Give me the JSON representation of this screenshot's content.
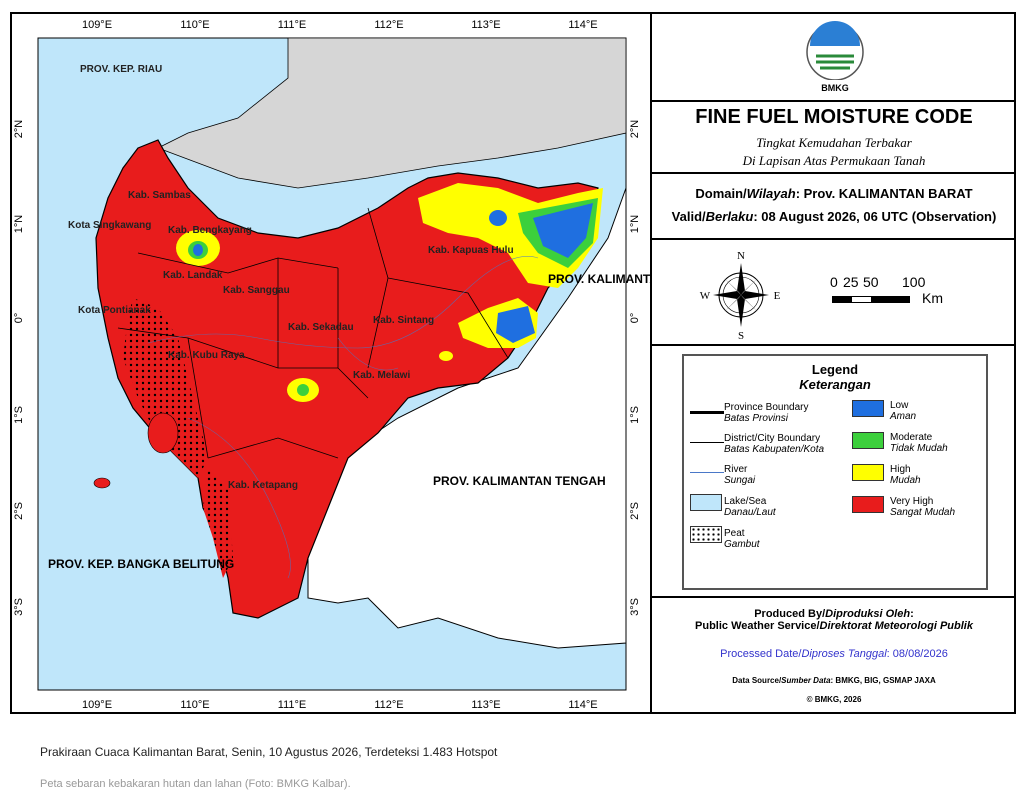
{
  "map": {
    "lon_labels": [
      "109°E",
      "110°E",
      "111°E",
      "112°E",
      "113°E",
      "114°E"
    ],
    "lat_labels": [
      "2°N",
      "1°N",
      "0°",
      "1°S",
      "2°S",
      "3°S"
    ],
    "places": [
      {
        "id": "prov-kep-riau",
        "text": "PROV. KEP. RIAU"
      },
      {
        "id": "kota-singkawang",
        "text": "Kota Singkawang"
      },
      {
        "id": "kab-sambas",
        "text": "Kab. Sambas"
      },
      {
        "id": "kab-bengkayang",
        "text": "Kab. Bengkayang"
      },
      {
        "id": "kab-landak",
        "text": "Kab. Landak"
      },
      {
        "id": "kab-sanggau",
        "text": "Kab. Sanggau"
      },
      {
        "id": "kab-sekadau",
        "text": "Kab. Sekadau"
      },
      {
        "id": "kab-sintang",
        "text": "Kab. Sintang"
      },
      {
        "id": "kab-melawi",
        "text": "Kab. Melawi"
      },
      {
        "id": "kab-kubu-raya",
        "text": "Kab. Kubu Raya"
      },
      {
        "id": "kab-ketapang",
        "text": "Kab. Ketapang"
      },
      {
        "id": "kota-pontianak",
        "text": "Kota Pontianak"
      },
      {
        "id": "kab-kapuas-hulu",
        "text": "Kab. Kapuas Hulu"
      },
      {
        "id": "prov-kalimantan-timur",
        "text": "PROV. KALIMANTAN TIMUR"
      },
      {
        "id": "prov-kalimantan-tengah",
        "text": "PROV. KALIMANTAN TENGAH"
      },
      {
        "id": "prov-bangka-belitung",
        "text": "PROV. KEP. BANGKA BELITUNG"
      }
    ]
  },
  "panel": {
    "logo_text": "BMKG",
    "title": "FINE FUEL MOISTURE CODE",
    "subtitle_1": "Tingkat Kemudahan Terbakar",
    "subtitle_2": "Di Lapisan Atas Permukaan Tanah",
    "domain_label": "Domain/",
    "domain_label_it": "Wilayah",
    "domain_value": ": Prov. KALIMANTAN BARAT",
    "valid_label": "Valid/",
    "valid_label_it": "Berlaku",
    "valid_value": ": 08 August 2026, 06 UTC (Observation)",
    "compass": {
      "n": "N",
      "s": "S",
      "e": "E",
      "w": "W"
    },
    "scale": {
      "ticks": [
        "0",
        "25",
        "50",
        "100"
      ],
      "unit": "Km"
    },
    "legend": {
      "title": "Legend",
      "subtitle": "Keterangan",
      "lines": [
        {
          "en": "Province Boundary",
          "id": "Batas Provinsi"
        },
        {
          "en": "District/City Boundary",
          "id": "Batas Kabupaten/Kota"
        },
        {
          "en": "River",
          "id": "Sungai"
        },
        {
          "en": "Lake/Sea",
          "id": "Danau/Laut"
        },
        {
          "en": "Peat",
          "id": "Gambut"
        }
      ],
      "classes": [
        {
          "en": "Low",
          "id": "Aman",
          "color": "#1f6fe0"
        },
        {
          "en": "Moderate",
          "id": "Tidak Mudah",
          "color": "#3cd03c"
        },
        {
          "en": "High",
          "id": "Mudah",
          "color": "#ffff00"
        },
        {
          "en": "Very High",
          "id": "Sangat Mudah",
          "color": "#e81c1c"
        }
      ]
    },
    "produced_label": "Produced By/",
    "produced_label_it": "Diproduksi Oleh",
    "produced_by_1": "Public Weather Service/",
    "produced_by_1_it": "Direktorat Meteorologi Publik",
    "processed_label": "Processed Date/",
    "processed_label_it": "Diproses Tanggal",
    "processed_value": ": 08/08/2026",
    "source_label": "Data Source/",
    "source_label_it": "Sumber Data",
    "source_value": ": BMKG, BIG, GSMAP JAXA",
    "copyright": "© BMKG, 2026"
  },
  "caption": {
    "line1": "Prakiraan Cuaca Kalimantan Barat, Senin, 10 Agustus 2026, Terdeteksi 1.483 Hotspot",
    "line2": "Peta sebaran kebakaran hutan dan lahan (Foto: BMKG Kalbar)."
  },
  "colors": {
    "sea": "#bfe6fa",
    "land_outside": "#d6d6d6",
    "very_high": "#e81c1c",
    "high": "#ffff00",
    "moderate": "#3cd03c",
    "low": "#1f6fe0",
    "blue_text": "#3333cc"
  }
}
